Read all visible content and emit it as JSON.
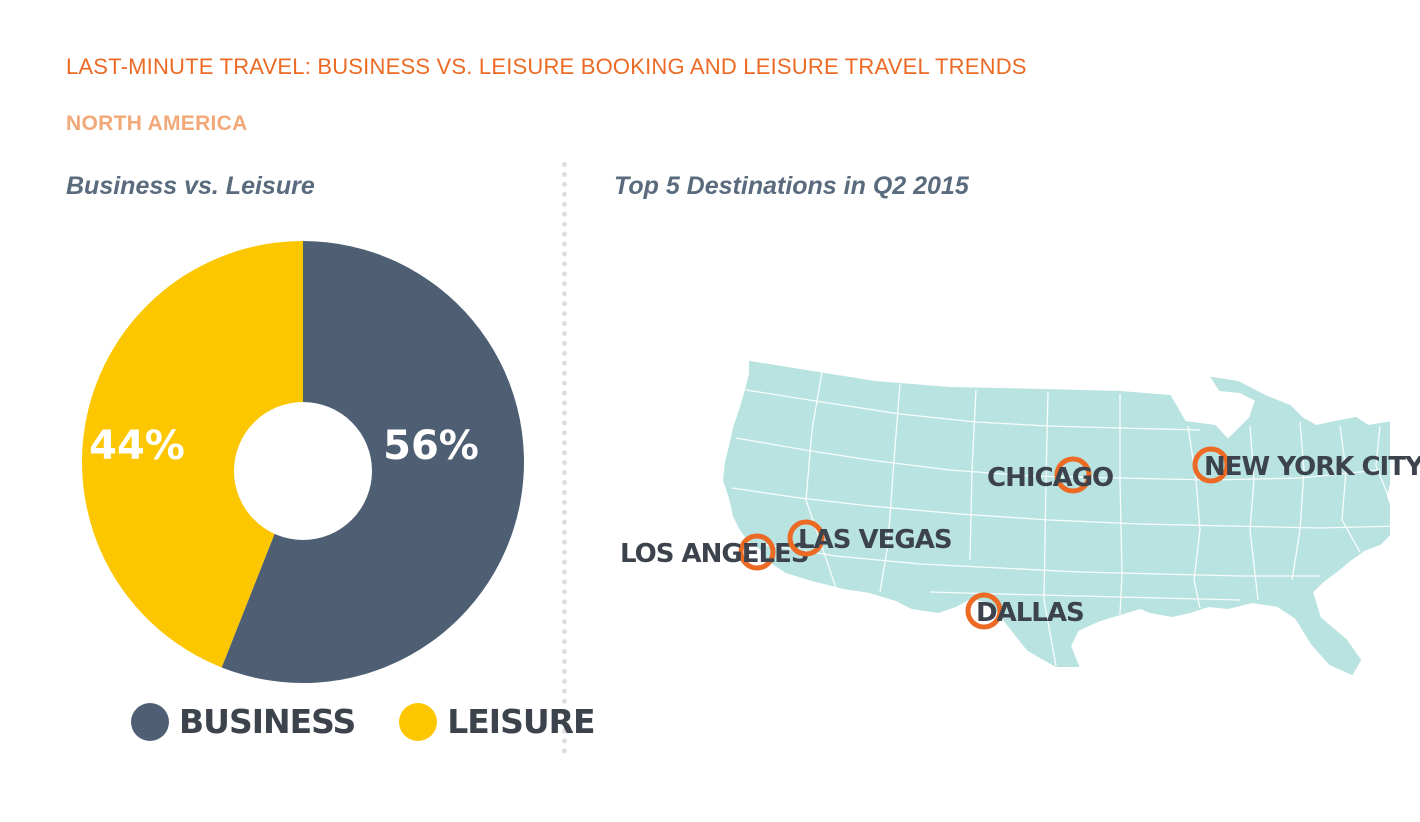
{
  "header": {
    "title": "LAST-MINUTE TRAVEL: BUSINESS VS. LEISURE BOOKING AND LEISURE TRAVEL TRENDS",
    "subtitle": "NORTH AMERICA"
  },
  "pie_section": {
    "title": "Business vs. Leisure"
  },
  "map_section": {
    "title": "Top 5 Destinations in Q2 2015"
  },
  "colors": {
    "business": "#4e5f73",
    "leisure": "#fcc700",
    "map_land": "#b8e3e0",
    "map_lines": "#ffffff",
    "marker": "#ec6a24"
  },
  "chart_data": [
    {
      "type": "pie",
      "title": "Business vs. Leisure",
      "categories": [
        "BUSINESS",
        "LEISURE"
      ],
      "values": [
        56,
        44
      ],
      "labels": [
        "56%",
        "44%"
      ],
      "colors": [
        "#4e5f73",
        "#fcc700"
      ],
      "donut": true,
      "legend": "bottom"
    }
  ],
  "map": {
    "title": "Top 5 Destinations in Q2 2015",
    "region": "United States",
    "cities": [
      {
        "name": "LOS ANGELES"
      },
      {
        "name": "LAS VEGAS"
      },
      {
        "name": "CHICAGO"
      },
      {
        "name": "DALLAS"
      },
      {
        "name": "NEW YORK CITY"
      }
    ]
  }
}
